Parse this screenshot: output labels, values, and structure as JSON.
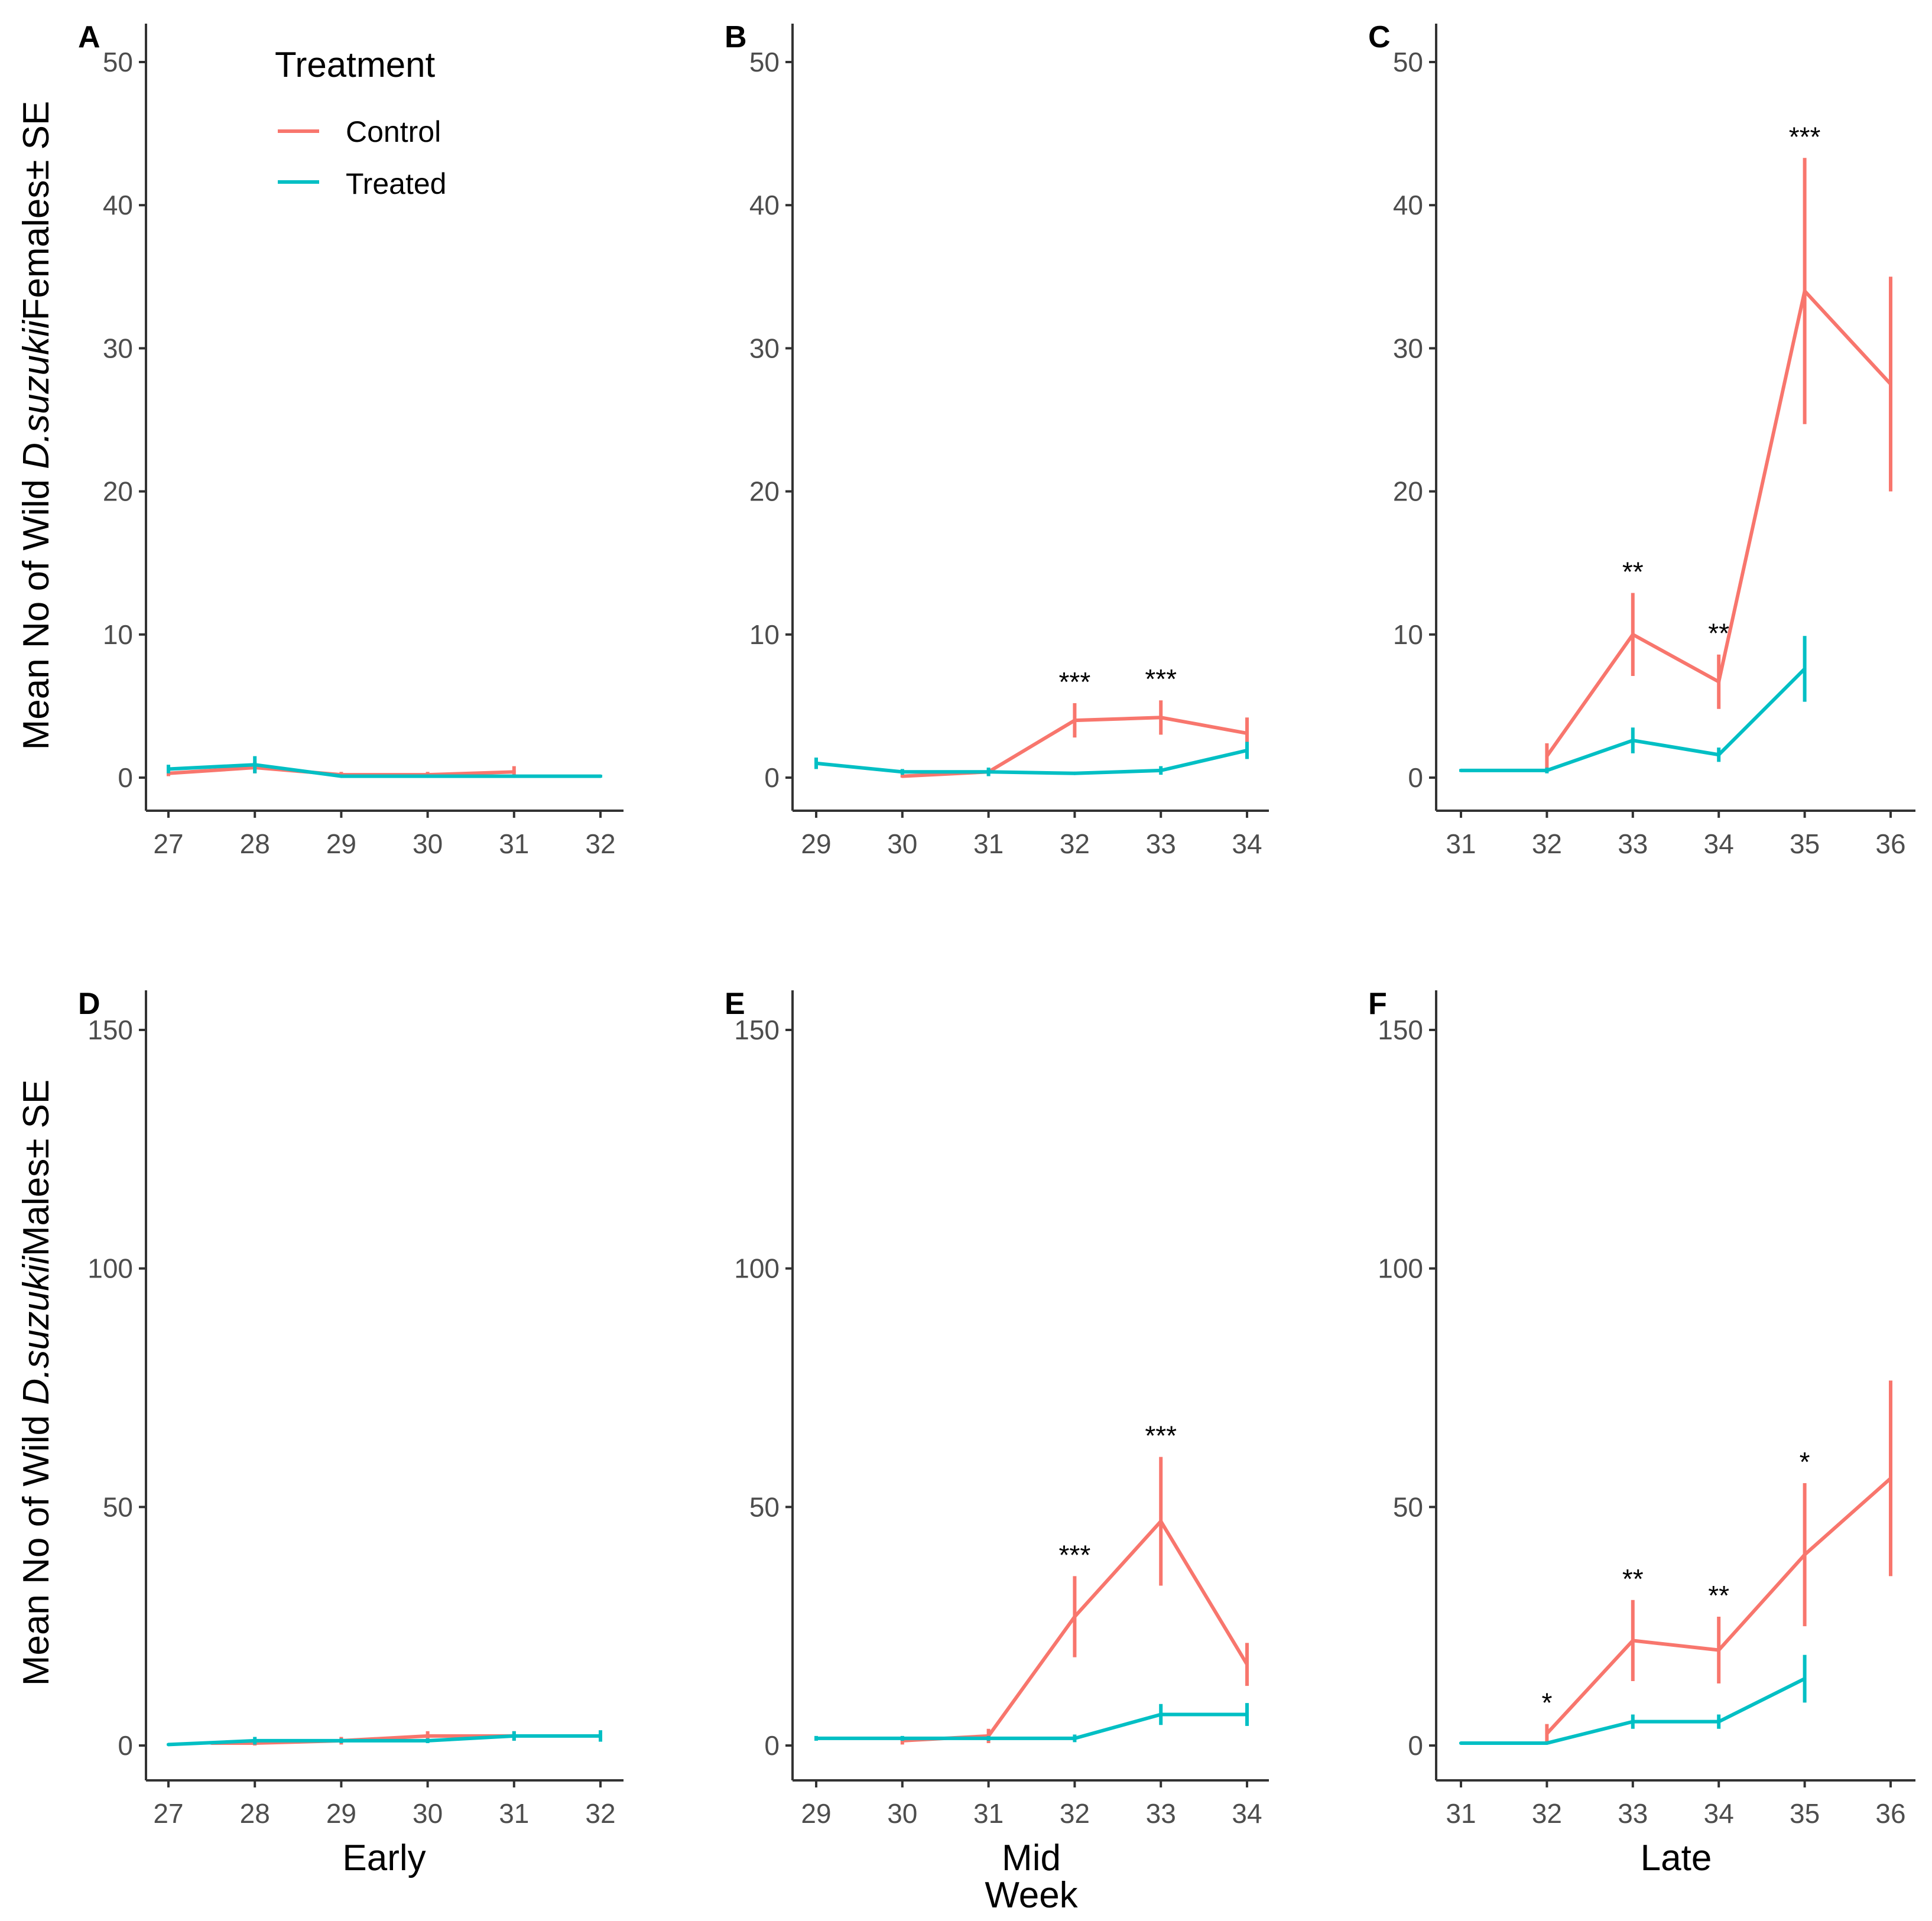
{
  "colors": {
    "Control": "#F8766D",
    "Treated": "#00BFC4"
  },
  "legend": {
    "title": "Treatment",
    "items": [
      "Control",
      "Treated"
    ]
  },
  "y_titles": {
    "top": {
      "prefix": "Mean No of Wild ",
      "italic": "D.suzukii",
      "suffix": "Females± SE"
    },
    "bottom": {
      "prefix": "Mean No of Wild ",
      "italic": "D.suzukii",
      "suffix": "Males± SE"
    }
  },
  "x_titles": {
    "early": "Early",
    "mid": "Mid",
    "late": "Late",
    "week": "Week"
  },
  "chart_data": [
    {
      "panel": "A",
      "type": "line",
      "ylim": [
        0,
        50
      ],
      "yticks": [
        0,
        10,
        20,
        30,
        40,
        50
      ],
      "x": [
        27,
        28,
        29,
        30,
        31,
        32
      ],
      "series": [
        {
          "name": "Control",
          "x": [
            27,
            28,
            29,
            30,
            31
          ],
          "y": [
            0.3,
            0.7,
            0.2,
            0.2,
            0.4
          ],
          "se": [
            0.2,
            0.4,
            0.2,
            0.2,
            0.4
          ]
        },
        {
          "name": "Treated",
          "x": [
            27,
            28,
            29,
            30,
            31,
            32
          ],
          "y": [
            0.6,
            0.9,
            0.1,
            0.1,
            0.1,
            0.1
          ],
          "se": [
            0.3,
            0.6,
            0.1,
            0.1,
            0.1,
            0.1
          ]
        }
      ],
      "sig": []
    },
    {
      "panel": "B",
      "type": "line",
      "ylim": [
        0,
        50
      ],
      "yticks": [
        0,
        10,
        20,
        30,
        40,
        50
      ],
      "x": [
        29,
        30,
        31,
        32,
        33,
        34
      ],
      "series": [
        {
          "name": "Control",
          "x": [
            30,
            31,
            32,
            33,
            34
          ],
          "y": [
            0.1,
            0.4,
            4.0,
            4.2,
            3.1
          ],
          "se": [
            0.1,
            0.2,
            1.2,
            1.2,
            1.1
          ]
        },
        {
          "name": "Treated",
          "x": [
            29,
            30,
            31,
            32,
            33,
            34
          ],
          "y": [
            1.0,
            0.4,
            0.4,
            0.3,
            0.5,
            1.9
          ],
          "se": [
            0.4,
            0.2,
            0.3,
            0.1,
            0.3,
            0.6
          ]
        }
      ],
      "sig": [
        {
          "x": 32,
          "label": "***"
        },
        {
          "x": 33,
          "label": "***"
        }
      ]
    },
    {
      "panel": "C",
      "type": "line",
      "ylim": [
        0,
        50
      ],
      "yticks": [
        0,
        10,
        20,
        30,
        40,
        50
      ],
      "x": [
        31,
        32,
        33,
        34,
        35,
        36
      ],
      "series": [
        {
          "name": "Control",
          "x": [
            32,
            33,
            34,
            35,
            36
          ],
          "y": [
            1.5,
            10.0,
            6.7,
            34.0,
            27.5
          ],
          "se": [
            0.9,
            2.9,
            1.9,
            9.3,
            7.5
          ]
        },
        {
          "name": "Treated",
          "x": [
            31,
            32,
            33,
            34,
            35
          ],
          "y": [
            0.5,
            0.5,
            2.6,
            1.6,
            7.6
          ],
          "se": [
            0.1,
            0.2,
            0.9,
            0.5,
            2.3
          ]
        }
      ],
      "sig": [
        {
          "x": 33,
          "label": "**"
        },
        {
          "x": 34,
          "label": "**"
        },
        {
          "x": 35,
          "label": "***"
        }
      ]
    },
    {
      "panel": "D",
      "type": "line",
      "ylim": [
        0,
        150
      ],
      "yticks": [
        0,
        50,
        100,
        150
      ],
      "x": [
        27,
        28,
        29,
        30,
        31,
        32
      ],
      "series": [
        {
          "name": "Control",
          "x": [
            27.5,
            28,
            29,
            30,
            31
          ],
          "y": [
            0.5,
            0.5,
            1.0,
            2.0,
            2.0
          ],
          "se": [
            0.3,
            0.5,
            0.8,
            1.0,
            1.0
          ]
        },
        {
          "name": "Treated",
          "x": [
            27,
            28,
            29,
            30,
            31,
            32
          ],
          "y": [
            0.2,
            1.0,
            1.0,
            1.0,
            2.0,
            2.0
          ],
          "se": [
            0.2,
            0.8,
            0.5,
            0.5,
            1.0,
            1.2
          ]
        }
      ],
      "sig": []
    },
    {
      "panel": "E",
      "type": "line",
      "ylim": [
        0,
        150
      ],
      "yticks": [
        0,
        50,
        100,
        150
      ],
      "x": [
        29,
        30,
        31,
        32,
        33,
        34
      ],
      "series": [
        {
          "name": "Control",
          "x": [
            30,
            31,
            32,
            33,
            34
          ],
          "y": [
            1.0,
            2.0,
            27.0,
            47.0,
            17.0
          ],
          "se": [
            0.8,
            1.5,
            8.5,
            13.5,
            4.5
          ]
        },
        {
          "name": "Treated",
          "x": [
            29,
            30,
            31,
            32,
            33,
            34
          ],
          "y": [
            1.5,
            1.5,
            1.5,
            1.5,
            6.5,
            6.5
          ],
          "se": [
            0.5,
            0.5,
            0.5,
            0.8,
            2.2,
            2.4
          ]
        }
      ],
      "sig": [
        {
          "x": 32,
          "label": "***"
        },
        {
          "x": 33,
          "label": "***"
        }
      ]
    },
    {
      "panel": "F",
      "type": "line",
      "ylim": [
        0,
        150
      ],
      "yticks": [
        0,
        50,
        100,
        150
      ],
      "x": [
        31,
        32,
        33,
        34,
        35,
        36
      ],
      "series": [
        {
          "name": "Control",
          "x": [
            32,
            33,
            34,
            35,
            36
          ],
          "y": [
            2.5,
            22.0,
            20.0,
            40.0,
            56.0
          ],
          "se": [
            2.0,
            8.5,
            7.0,
            15.0,
            20.5
          ]
        },
        {
          "name": "Treated",
          "x": [
            31,
            32,
            33,
            34,
            35
          ],
          "y": [
            0.5,
            0.5,
            5.0,
            5.0,
            14.0
          ],
          "se": [
            0.2,
            0.2,
            1.5,
            1.5,
            5.0
          ]
        }
      ],
      "sig": [
        {
          "x": 32,
          "label": "*"
        },
        {
          "x": 33,
          "label": "**"
        },
        {
          "x": 34,
          "label": "**"
        },
        {
          "x": 35,
          "label": "*"
        }
      ]
    }
  ]
}
